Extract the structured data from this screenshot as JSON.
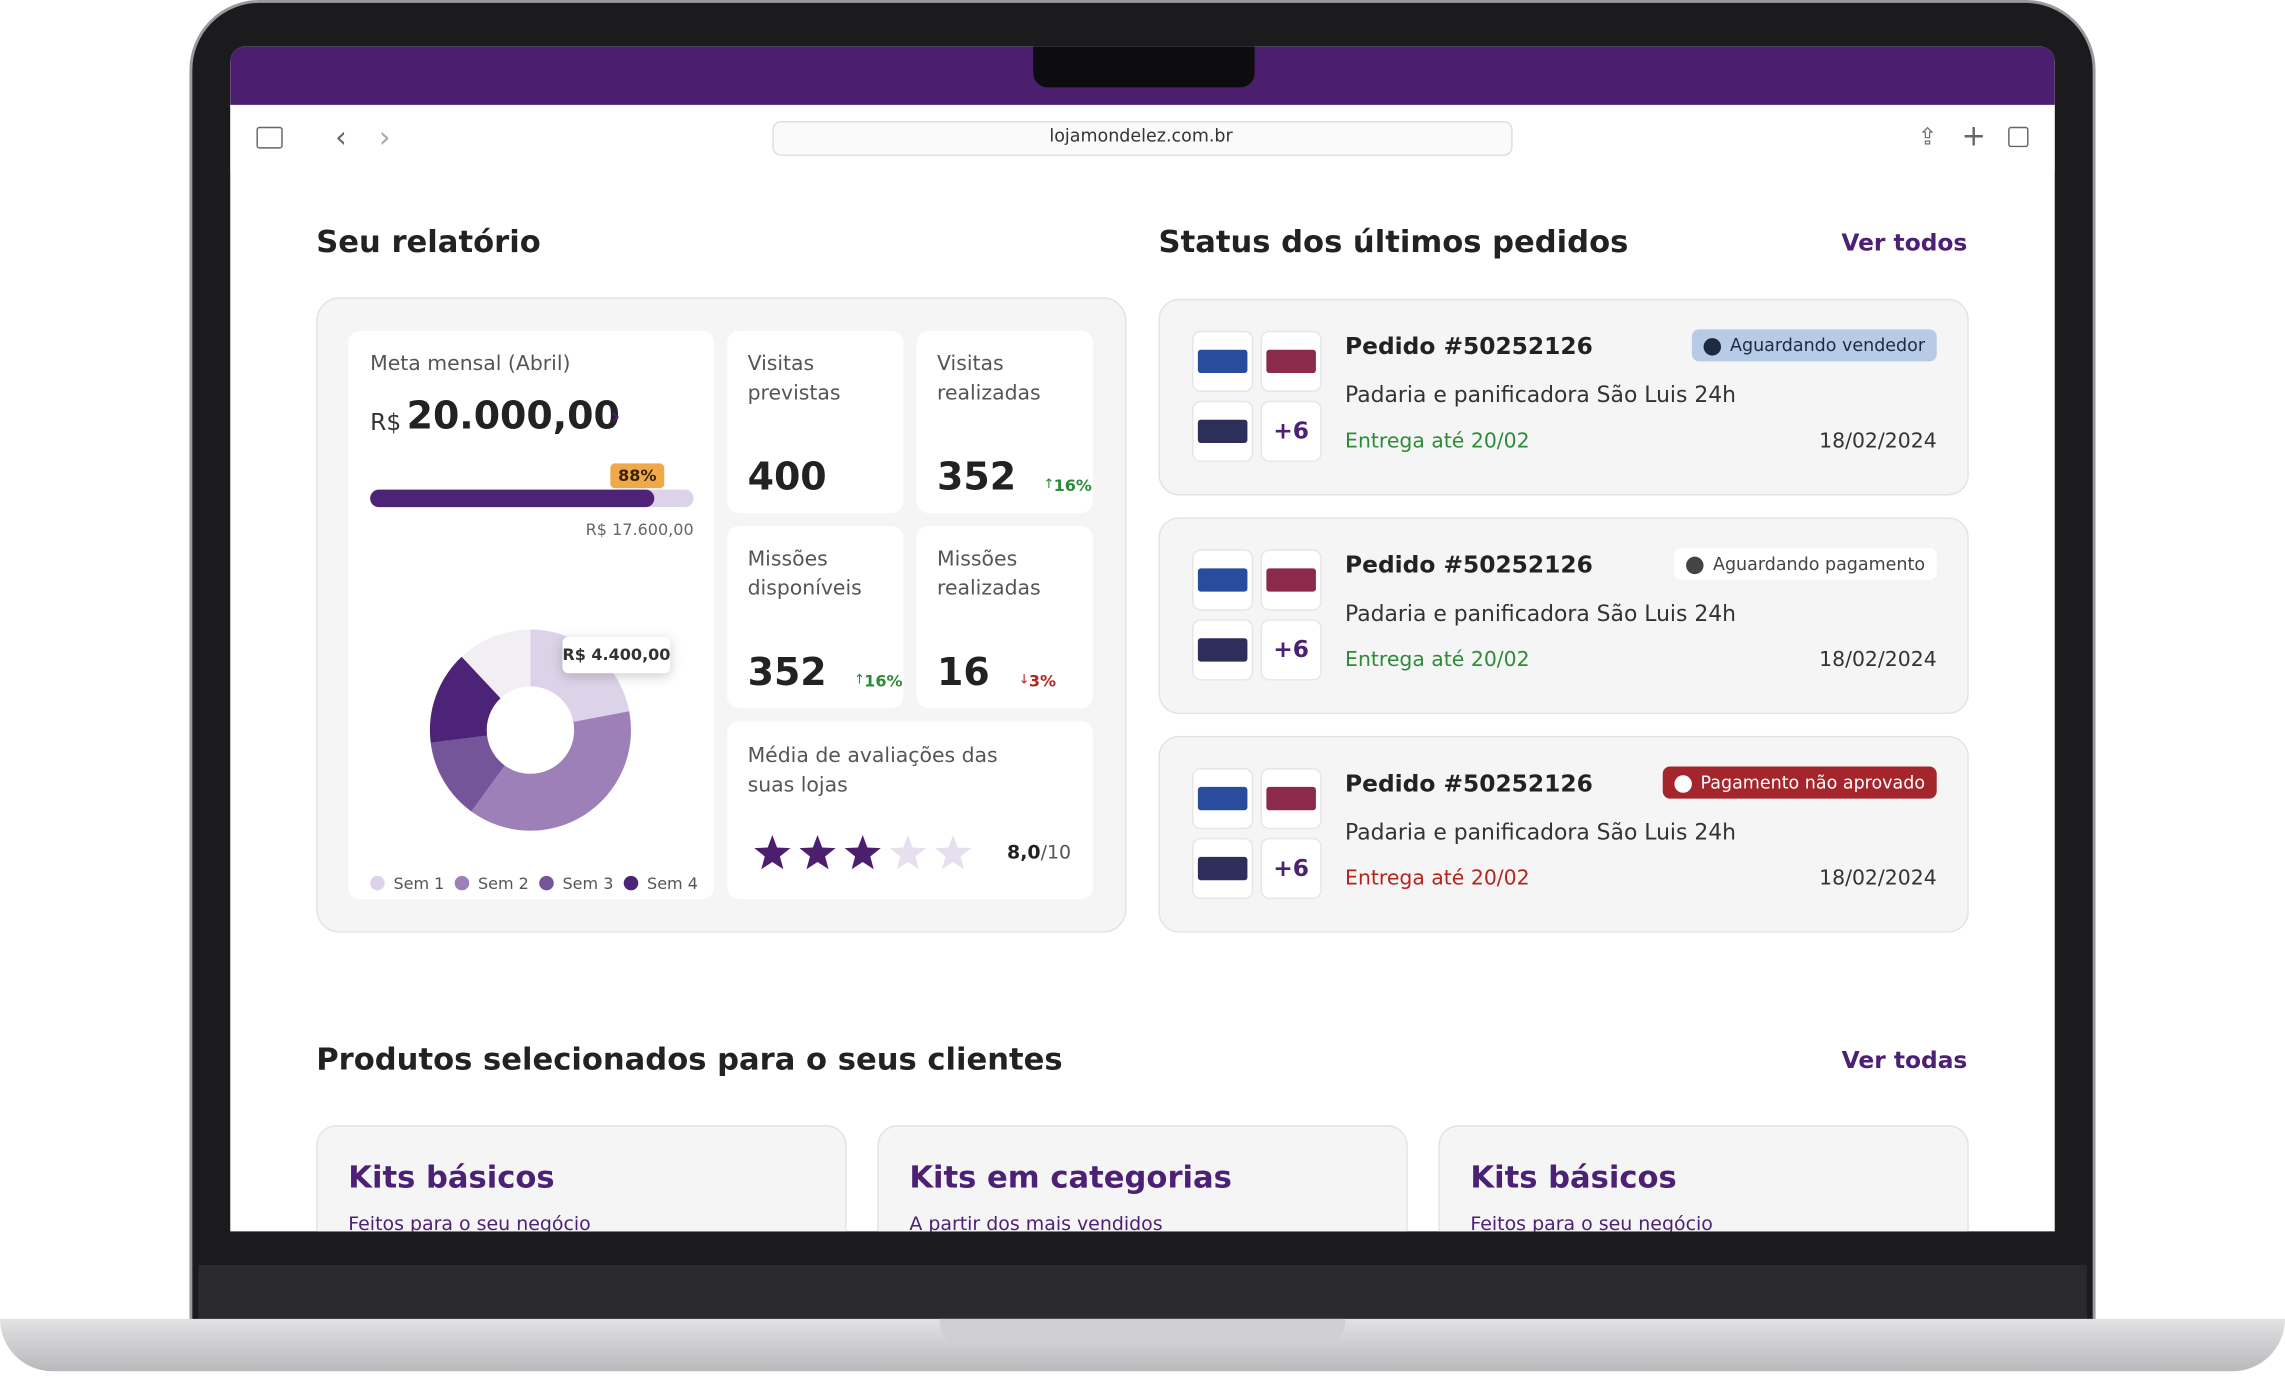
{
  "browser": {
    "url": "lojamondelez.com.br"
  },
  "report": {
    "title": "Seu relatório",
    "goal_title": "Meta mensal (Abril)",
    "currency": "R$",
    "monthly_goal": {
      "value": 20000,
      "label": "20.000,00"
    },
    "progress": {
      "value": 88,
      "label": "88%"
    },
    "achieved": {
      "value": 17600,
      "label": "R$ 17.600,00"
    },
    "chart_data": {
      "type": "donut",
      "categories": [
        "Sem 1",
        "Sem 2",
        "Sem 3",
        "Sem 4"
      ],
      "values": [
        4400,
        7600,
        2600,
        3000
      ],
      "value_labels": [
        "R$ 4.400,00",
        null,
        null,
        null
      ],
      "colors": [
        "#ddd3e8",
        "#9d80b8",
        "#75559a",
        "#4c2377"
      ]
    },
    "stats": [
      {
        "label": "Visitas previstas",
        "value": "400"
      },
      {
        "label": "Visitas realizadas",
        "value": "352",
        "change": "16%",
        "trend": "up",
        "change_color": "#2e8b3a"
      },
      {
        "label": "Missões disponíveis",
        "value": "352",
        "change": "16%",
        "trend": "up",
        "change_color": "#2e8b3a"
      },
      {
        "label": "Missões realizadas",
        "value": "16",
        "change": "3%",
        "trend": "down",
        "change_color": "#b3261e"
      }
    ],
    "rating": {
      "label": "Média de avaliações das suas lojas",
      "value": "8,0",
      "max": "/10"
    }
  },
  "orders": {
    "title": "Status dos últimos pedidos",
    "link": "Ver todos",
    "items": [
      {
        "title": "Pedido #50252126",
        "store": "Padaria e panificadora São Luis 24h",
        "delivery": "Entrega até 20/02",
        "delivery_color": "#2e8b3a",
        "date": "18/02/2024",
        "more": "+6",
        "status": "Aguardando vendedor",
        "status_bg": "#b7cbe6",
        "status_fg": "#1e2a40"
      },
      {
        "title": "Pedido #50252126",
        "store": "Padaria e panificadora São Luis 24h",
        "delivery": "Entrega até 20/02",
        "delivery_color": "#2e8b3a",
        "date": "18/02/2024",
        "more": "+6",
        "status": "Aguardando pagamento",
        "status_bg": "#ffffff",
        "status_fg": "#444444"
      },
      {
        "title": "Pedido #50252126",
        "store": "Padaria e panificadora São Luis 24h",
        "delivery": "Entrega até 20/02",
        "delivery_color": "#b3261e",
        "date": "18/02/2024",
        "more": "+6",
        "status": "Pagamento não aprovado",
        "status_bg": "#a4262c",
        "status_fg": "#ffffff"
      }
    ]
  },
  "products": {
    "title": "Produtos selecionados para o seus clientes",
    "link": "Ver todas",
    "items": [
      {
        "title": "Kits básicos",
        "subtitle": "Feitos para o seu negócio"
      },
      {
        "title": "Kits em categorias",
        "subtitle": "A partir dos mais vendidos"
      },
      {
        "title": "Kits básicos",
        "subtitle": "Feitos para o seu negócio"
      }
    ]
  }
}
